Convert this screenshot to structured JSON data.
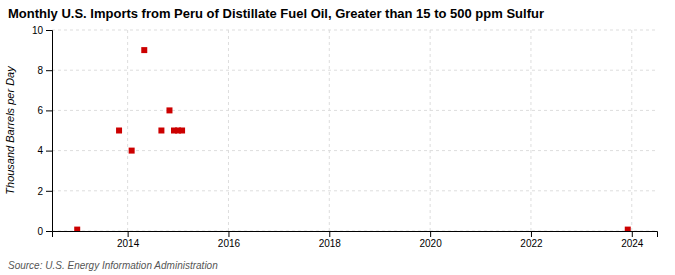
{
  "chart_data": {
    "type": "scatter",
    "title": "Monthly U.S. Imports from Peru of Distillate Fuel Oil, Greater than 15 to 500 ppm Sulfur",
    "y_label": "Thousand Barrels per Day",
    "annotation": "Source: U.S. Energy Information Administration",
    "x": [
      2013.0,
      2013.83,
      2014.08,
      2014.33,
      2014.67,
      2014.83,
      2014.92,
      2015.0,
      2015.08,
      2023.92
    ],
    "values": [
      0.07,
      5.0,
      4.0,
      9.0,
      5.0,
      6.0,
      5.0,
      5.0,
      5.0,
      0.07
    ],
    "color": "#cc0000",
    "marker": "square",
    "xlim": [
      2012.5,
      2024.5
    ],
    "ylim": [
      0,
      10
    ],
    "xticks": [
      2014,
      2016,
      2018,
      2020,
      2022,
      2024
    ],
    "yticks": [
      0,
      2,
      4,
      6,
      8,
      10
    ],
    "grid": true
  }
}
